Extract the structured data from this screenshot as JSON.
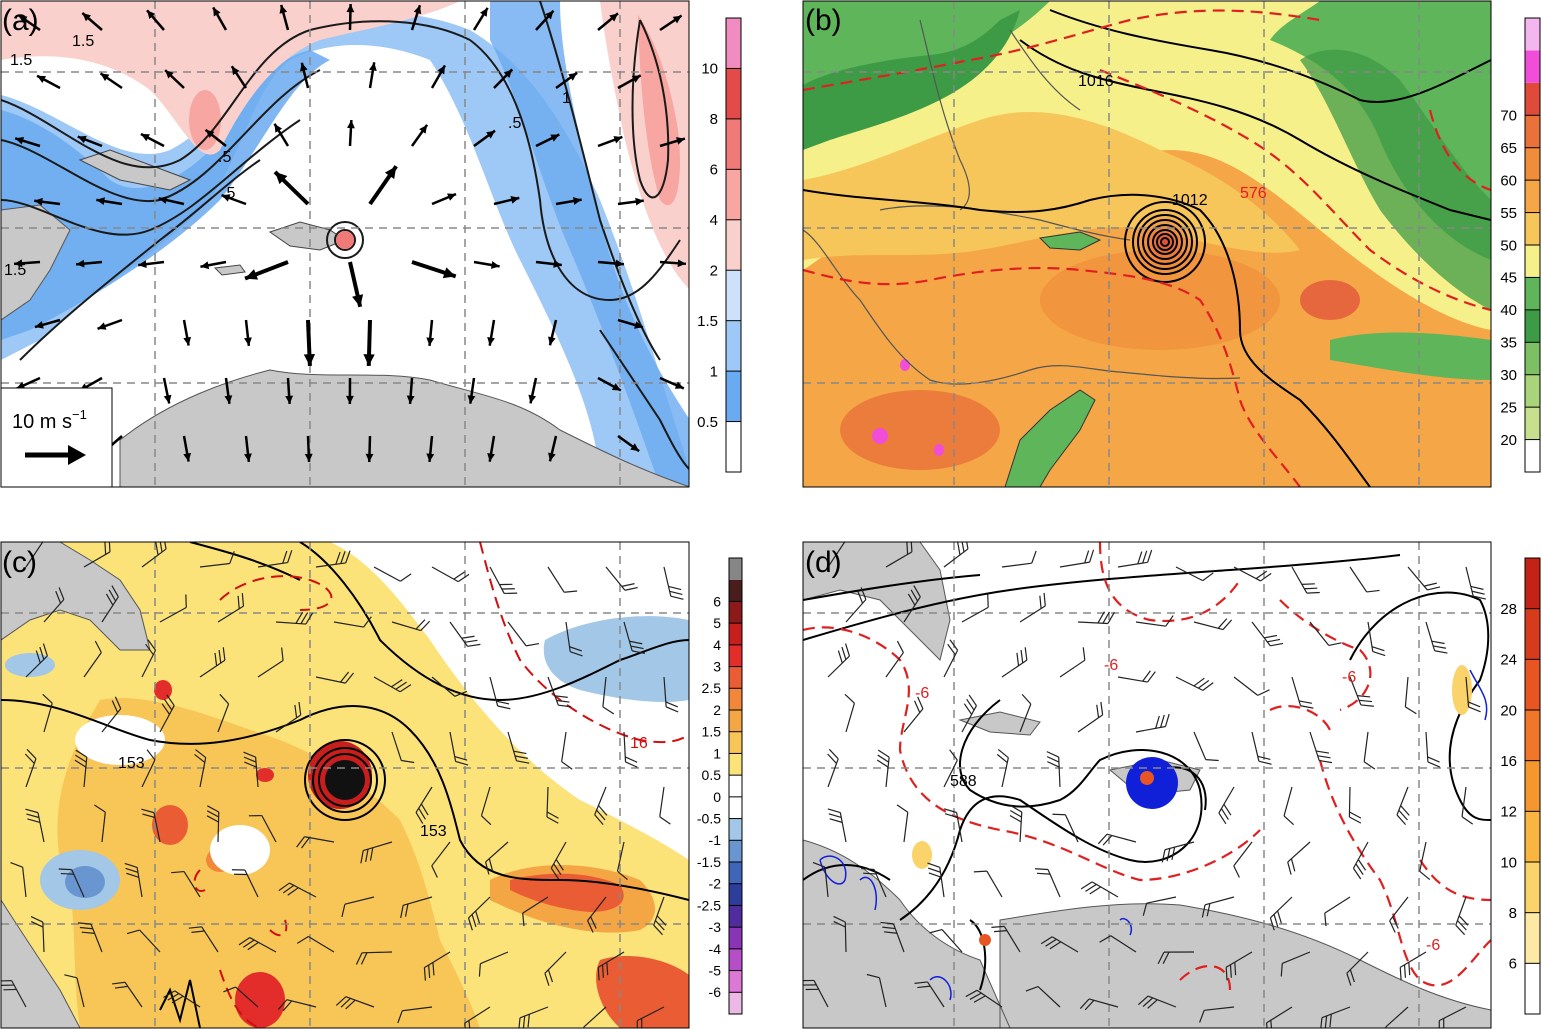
{
  "panels": {
    "a": {
      "label": "(a)",
      "colors": [
        "#ffffff",
        "#6aaaf0",
        "#9ec8f5",
        "#cde2fa",
        "#fad0cc",
        "#f7a6a1",
        "#f07a78",
        "#e34b4b",
        "#f08cc0"
      ],
      "colorbar_labels": [
        "0.5",
        "1",
        "1.5",
        "2",
        "4",
        "6",
        "8",
        "10"
      ],
      "contour_labels": [
        "1.5",
        ".5",
        ".5",
        "1",
        ".5",
        "1.5",
        "1.5"
      ],
      "legend": {
        "text": "10 m s",
        "exponent": "−1"
      }
    },
    "b": {
      "label": "(b)",
      "colors": [
        "#ffffff",
        "#c8e08e",
        "#a9d47a",
        "#7dc063",
        "#3e9b45",
        "#5fb55a",
        "#f6f08a",
        "#f7c65a",
        "#f5a747",
        "#f08d3a",
        "#e8723a",
        "#e04a3a",
        "#f04ed8",
        "#f3b6ee"
      ],
      "colorbar_labels": [
        "20",
        "25",
        "30",
        "35",
        "40",
        "45",
        "50",
        "55",
        "60",
        "65",
        "70"
      ],
      "contour_labels": [
        "1016",
        "1012",
        "576"
      ]
    },
    "c": {
      "label": "(c)",
      "colors": [
        "#ecb8e6",
        "#de78d6",
        "#b64fc7",
        "#8a35b6",
        "#4f2d9f",
        "#2e3d9a",
        "#3f66b8",
        "#6996d1",
        "#a3c7e6",
        "#ffffff",
        "#ffffff",
        "#fbe37a",
        "#f8c657",
        "#f5a644",
        "#f28739",
        "#ea5d34",
        "#e32d2a",
        "#c71e1e",
        "#8c1a1a",
        "#4a1d1d",
        "#868686"
      ],
      "colorbar_labels": [
        "-6",
        "-5",
        "-4",
        "-3",
        "-2.5",
        "-2",
        "-1.5",
        "-1",
        "-0.5",
        "0",
        "0.5",
        "1",
        "1.5",
        "2",
        "2.5",
        "3",
        "4",
        "5",
        "6"
      ],
      "contour_labels": [
        "153",
        "153",
        "16"
      ]
    },
    "d": {
      "label": "(d)",
      "colors": [
        "#ffffff",
        "#fde9a3",
        "#fbd36b",
        "#f8b53f",
        "#f5972f",
        "#f0772a",
        "#e65522",
        "#d63b1c",
        "#c32316"
      ],
      "colorbar_labels": [
        "6",
        "8",
        "10",
        "12",
        "16",
        "20",
        "24",
        "28"
      ],
      "contour_labels": [
        "-6",
        "-6",
        "588",
        "-6",
        "-6"
      ]
    }
  }
}
